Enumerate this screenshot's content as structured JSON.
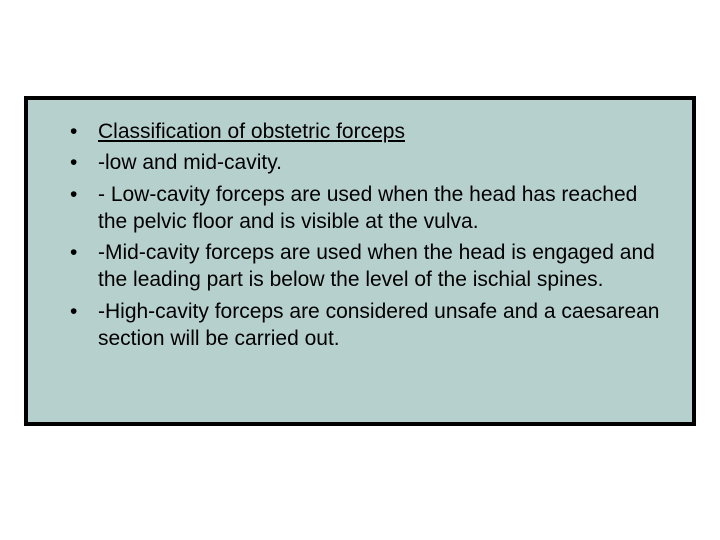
{
  "slide": {
    "background_color": "#b6d0cd",
    "border_color": "#000000",
    "border_width": 4,
    "font_family": "Arial",
    "font_size": 21,
    "text_color": "#000000",
    "bullets": [
      {
        "text": "Classification of obstetric forceps",
        "underlined": true
      },
      {
        "text": "-low and mid-cavity.",
        "underlined": false
      },
      {
        "text": "- Low-cavity forceps are used when the head has reached the pelvic floor and is visible at the vulva.",
        "underlined": false
      },
      {
        "text": "-Mid-cavity forceps are used when the head is engaged and the leading part is below the level of the ischial spines.",
        "underlined": false
      },
      {
        "text": "-High-cavity forceps are considered unsafe and a caesarean section will be carried out.",
        "underlined": false
      }
    ]
  }
}
